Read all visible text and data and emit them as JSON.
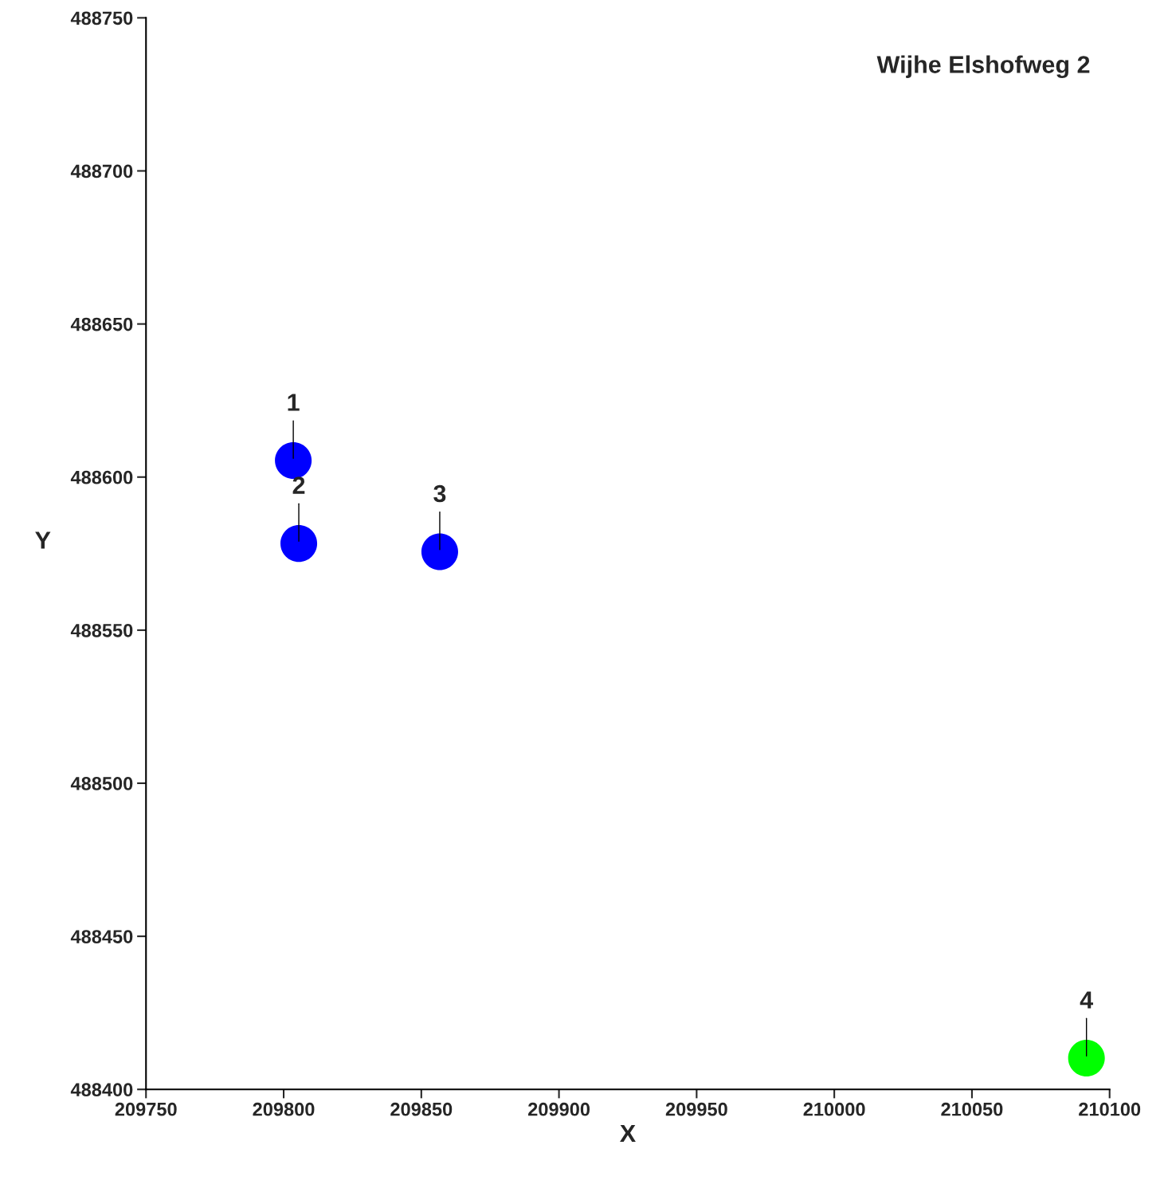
{
  "chart_data": {
    "type": "scatter",
    "title": "Wijhe Elshofweg 2",
    "xlabel": "X",
    "ylabel": "Y",
    "x": [
      209803.5,
      209805.5,
      209856.7,
      210091.6
    ],
    "values": [
      488605.4,
      488578.3,
      488575.6,
      488410.2
    ],
    "colors": [
      "#0000ff",
      "#0000ff",
      "#0000ff",
      "#00ff00"
    ],
    "marker": "circle",
    "grid": false,
    "legend": false,
    "xlim": [
      209750,
      210100
    ],
    "xticks": [
      209750,
      209800,
      209850,
      209900,
      209950,
      210000,
      210050,
      210100
    ],
    "ylim": [
      488400,
      488750
    ],
    "yticks": [
      488400,
      488450,
      488500,
      488550,
      488600,
      488650,
      488700,
      488750
    ],
    "annotations": [
      {
        "text": "1",
        "x": 209803.5,
        "y": 488605.4
      },
      {
        "text": "2",
        "x": 209805.5,
        "y": 488578.3
      },
      {
        "text": "3",
        "x": 209856.7,
        "y": 488575.6
      },
      {
        "text": "4",
        "x": 210091.6,
        "y": 488410.2
      }
    ]
  }
}
